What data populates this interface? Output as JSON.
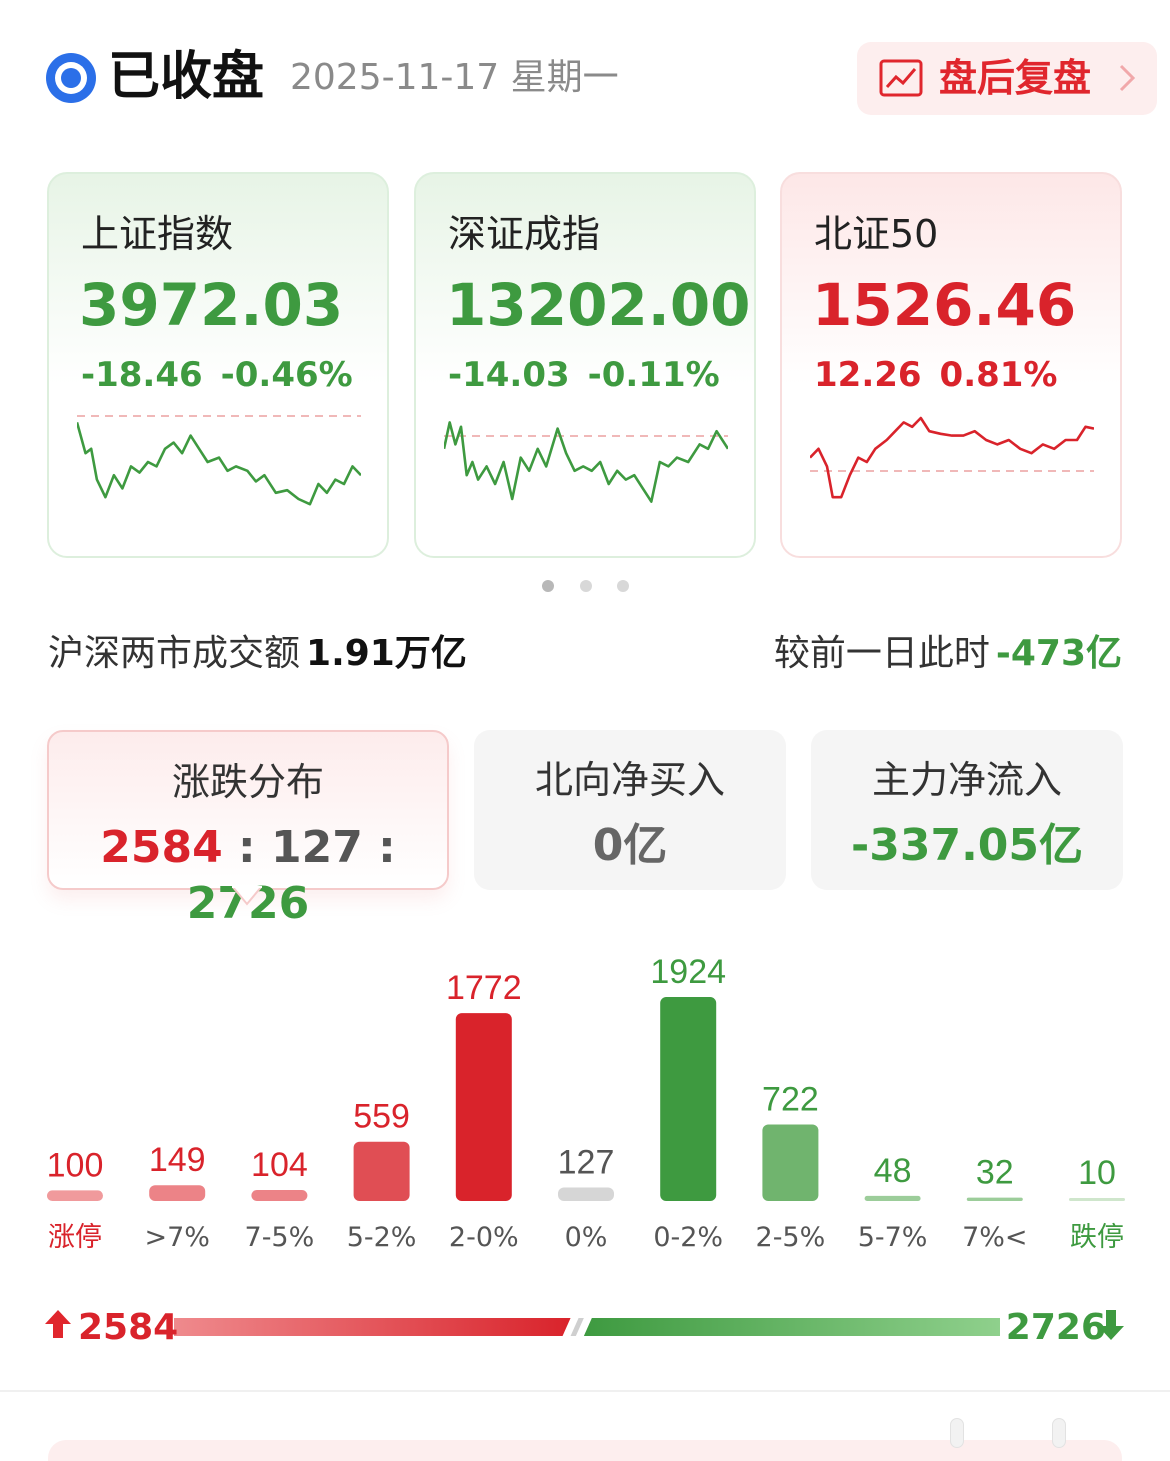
{
  "header": {
    "status": "已收盘",
    "date": "2025-11-17  星期一",
    "review_label": "盘后复盘"
  },
  "indices": [
    {
      "name": "上证指数",
      "value": "3972.03",
      "change": "-18.46",
      "pct": "-0.46%",
      "trend": "down",
      "color": "#3e9a40",
      "spark": [
        [
          0,
          0.05
        ],
        [
          0.03,
          0.4
        ],
        [
          0.05,
          0.35
        ],
        [
          0.07,
          0.7
        ],
        [
          0.1,
          0.9
        ],
        [
          0.13,
          0.65
        ],
        [
          0.16,
          0.8
        ],
        [
          0.19,
          0.55
        ],
        [
          0.22,
          0.62
        ],
        [
          0.25,
          0.5
        ],
        [
          0.28,
          0.55
        ],
        [
          0.31,
          0.35
        ],
        [
          0.34,
          0.28
        ],
        [
          0.37,
          0.4
        ],
        [
          0.4,
          0.2
        ],
        [
          0.43,
          0.35
        ],
        [
          0.46,
          0.5
        ],
        [
          0.5,
          0.45
        ],
        [
          0.53,
          0.6
        ],
        [
          0.56,
          0.55
        ],
        [
          0.6,
          0.6
        ],
        [
          0.63,
          0.72
        ],
        [
          0.66,
          0.65
        ],
        [
          0.7,
          0.85
        ],
        [
          0.74,
          0.82
        ],
        [
          0.78,
          0.92
        ],
        [
          0.82,
          0.98
        ],
        [
          0.85,
          0.75
        ],
        [
          0.88,
          0.85
        ],
        [
          0.91,
          0.7
        ],
        [
          0.94,
          0.75
        ],
        [
          0.97,
          0.55
        ],
        [
          1,
          0.65
        ]
      ],
      "ref": 0.0
    },
    {
      "name": "深证成指",
      "value": "13202.00",
      "change": "-14.03",
      "pct": "-0.11%",
      "trend": "down",
      "color": "#3e9a40",
      "spark": [
        [
          0,
          0.35
        ],
        [
          0.02,
          0.05
        ],
        [
          0.04,
          0.3
        ],
        [
          0.06,
          0.1
        ],
        [
          0.08,
          0.65
        ],
        [
          0.1,
          0.5
        ],
        [
          0.12,
          0.7
        ],
        [
          0.15,
          0.55
        ],
        [
          0.18,
          0.75
        ],
        [
          0.21,
          0.5
        ],
        [
          0.24,
          0.92
        ],
        [
          0.27,
          0.45
        ],
        [
          0.3,
          0.6
        ],
        [
          0.33,
          0.35
        ],
        [
          0.36,
          0.55
        ],
        [
          0.4,
          0.12
        ],
        [
          0.43,
          0.4
        ],
        [
          0.46,
          0.6
        ],
        [
          0.49,
          0.55
        ],
        [
          0.52,
          0.6
        ],
        [
          0.55,
          0.5
        ],
        [
          0.58,
          0.75
        ],
        [
          0.61,
          0.6
        ],
        [
          0.64,
          0.7
        ],
        [
          0.67,
          0.65
        ],
        [
          0.7,
          0.8
        ],
        [
          0.73,
          0.95
        ],
        [
          0.76,
          0.5
        ],
        [
          0.79,
          0.55
        ],
        [
          0.82,
          0.45
        ],
        [
          0.86,
          0.5
        ],
        [
          0.9,
          0.3
        ],
        [
          0.93,
          0.35
        ],
        [
          0.96,
          0.15
        ],
        [
          1,
          0.35
        ]
      ],
      "ref": 0.2
    },
    {
      "name": "北证50",
      "value": "1526.46",
      "change": "12.26",
      "pct": "0.81%",
      "trend": "up",
      "color": "#d9232b",
      "spark": [
        [
          0,
          0.45
        ],
        [
          0.03,
          0.35
        ],
        [
          0.06,
          0.55
        ],
        [
          0.08,
          0.9
        ],
        [
          0.11,
          0.9
        ],
        [
          0.14,
          0.65
        ],
        [
          0.17,
          0.45
        ],
        [
          0.2,
          0.5
        ],
        [
          0.23,
          0.35
        ],
        [
          0.27,
          0.25
        ],
        [
          0.3,
          0.15
        ],
        [
          0.33,
          0.05
        ],
        [
          0.36,
          0.1
        ],
        [
          0.39,
          0.0
        ],
        [
          0.42,
          0.15
        ],
        [
          0.46,
          0.18
        ],
        [
          0.5,
          0.2
        ],
        [
          0.54,
          0.2
        ],
        [
          0.58,
          0.15
        ],
        [
          0.62,
          0.25
        ],
        [
          0.66,
          0.3
        ],
        [
          0.7,
          0.25
        ],
        [
          0.74,
          0.35
        ],
        [
          0.78,
          0.4
        ],
        [
          0.82,
          0.3
        ],
        [
          0.86,
          0.35
        ],
        [
          0.9,
          0.25
        ],
        [
          0.94,
          0.25
        ],
        [
          0.97,
          0.1
        ],
        [
          1,
          0.12
        ]
      ],
      "ref": 0.55
    }
  ],
  "turnover": {
    "label": "沪深两市成交额",
    "value": "1.91万亿",
    "compare_label": "较前一日此时",
    "compare_value": "-473亿"
  },
  "tabs": [
    {
      "title": "涨跌分布",
      "up": "2584",
      "flat": "127",
      "down": "2726",
      "sep": ":"
    },
    {
      "title": "北向净买入",
      "value": "0亿"
    },
    {
      "title": "主力净流入",
      "value": "-337.05亿"
    }
  ],
  "chart_data": {
    "type": "bar",
    "categories": [
      "涨停",
      ">7%",
      "7-5%",
      "5-2%",
      "2-0%",
      "0%",
      "0-2%",
      "2-5%",
      "5-7%",
      "7%<",
      "跌停"
    ],
    "values": [
      100,
      149,
      104,
      559,
      1772,
      127,
      1924,
      722,
      48,
      32,
      10
    ],
    "colors": [
      "#f09a9c",
      "#ec8387",
      "#ec8387",
      "#e04e54",
      "#d9232b",
      "#d6d6d6",
      "#3e9a40",
      "#70b46e",
      "#9ccd9a",
      "#9ccd9a",
      "#cfe6cc"
    ],
    "label_colors": [
      "#d9232b",
      "#d9232b",
      "#d9232b",
      "#d9232b",
      "#d9232b",
      "#555555",
      "#3e9a40",
      "#3e9a40",
      "#3e9a40",
      "#3e9a40",
      "#3e9a40"
    ],
    "cat_colors": [
      "#d9232b",
      "#555555",
      "#555555",
      "#555555",
      "#555555",
      "#555555",
      "#555555",
      "#555555",
      "#555555",
      "#555555",
      "#3e9a40"
    ],
    "ylim": [
      0,
      2000
    ]
  },
  "updown": {
    "up": "2584",
    "down": "2726",
    "flat": 127
  }
}
